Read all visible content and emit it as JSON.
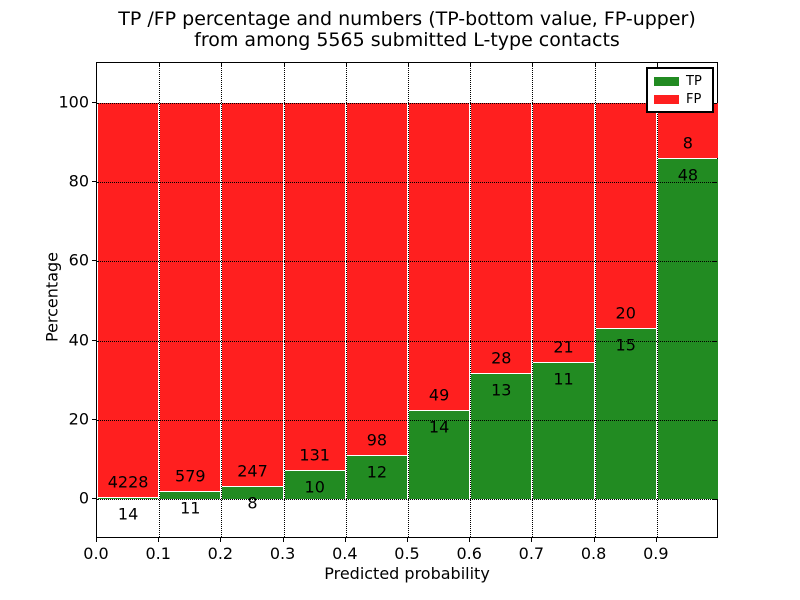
{
  "title": {
    "line1": "TP /FP percentage and numbers (TP-bottom value, FP-upper)",
    "line2": "from among 5565 submitted L-type contacts"
  },
  "chart_data": {
    "type": "bar",
    "stacked": true,
    "normalized_to_percent": true,
    "total_submitted": 5565,
    "bin_edges": [
      0.0,
      0.1,
      0.2,
      0.3,
      0.4,
      0.5,
      0.6,
      0.7,
      0.8,
      0.9,
      1.0
    ],
    "series": [
      {
        "name": "TP",
        "color": "#228b22",
        "values": [
          14,
          11,
          8,
          10,
          12,
          14,
          13,
          11,
          15,
          48
        ]
      },
      {
        "name": "FP",
        "color": "#ff1f1f",
        "values": [
          4228,
          579,
          247,
          131,
          98,
          49,
          28,
          21,
          20,
          8
        ]
      }
    ],
    "bar_label_note": "TP count below green top, FP count above green top",
    "xlabel": "Predicted probability",
    "ylabel": "Percentage",
    "xtick_labels": [
      "0.0",
      "0.1",
      "0.2",
      "0.3",
      "0.4",
      "0.5",
      "0.6",
      "0.7",
      "0.8",
      "0.9"
    ],
    "xtick_values": [
      0.0,
      0.1,
      0.2,
      0.3,
      0.4,
      0.5,
      0.6,
      0.7,
      0.8,
      0.9
    ],
    "ytick_labels": [
      "0",
      "20",
      "40",
      "60",
      "80",
      "100"
    ],
    "ytick_values": [
      0,
      20,
      40,
      60,
      80,
      100
    ],
    "xlim": [
      0.0,
      1.0
    ],
    "ylim": [
      -10,
      110
    ],
    "grid_style": "dotted",
    "bar_edge_color": "#ffffff",
    "axis_color": "#000000",
    "background": "#ffffff",
    "legend": {
      "position": "upper right",
      "entries": [
        "TP",
        "FP"
      ]
    }
  }
}
